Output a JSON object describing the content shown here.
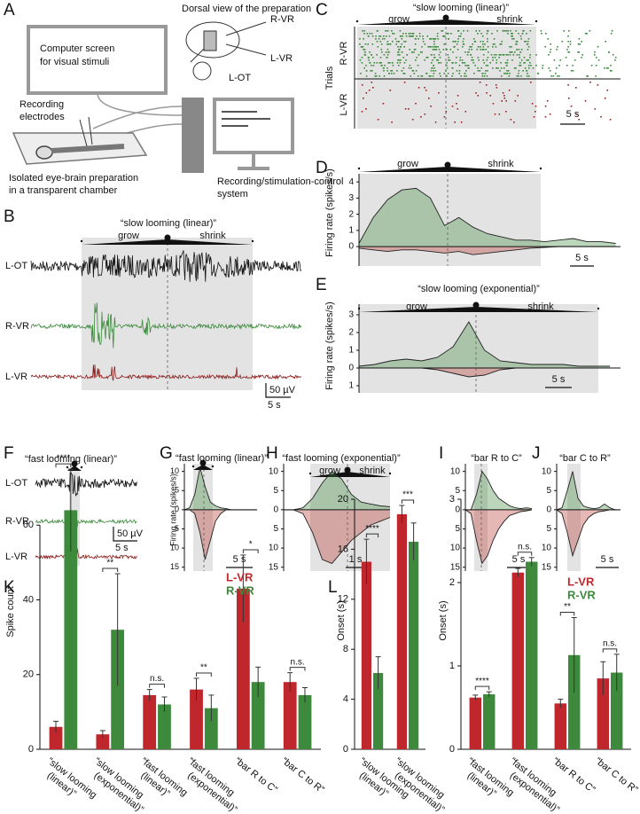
{
  "panel_labels": [
    "A",
    "B",
    "C",
    "D",
    "E",
    "F",
    "G",
    "H",
    "I",
    "J",
    "K",
    "L"
  ],
  "panel_a": {
    "screen": [
      "Computer screen",
      "for visual stimuli"
    ],
    "electrodes": [
      "Recording",
      "electrodes"
    ],
    "chamber": [
      "Isolated eye-brain preparation",
      "in a transparent chamber"
    ],
    "system": [
      "Recording/stimulation-control",
      "system"
    ],
    "dorsal": "Dorsal view of the preparation",
    "labels": [
      "R-VR",
      "L-OT",
      "L-VR"
    ]
  },
  "panel_b": {
    "title": "“slow looming (linear)”",
    "grow": "grow",
    "shrink": "shrink",
    "traces": [
      "L-OT",
      "R-VR",
      "L-VR"
    ],
    "scale_v": "50 µV",
    "scale_t": "5 s"
  },
  "panel_c": {
    "title": "“slow looming (linear)”",
    "grow": "grow",
    "shrink": "shrink",
    "trials": "Trials",
    "rows": [
      "R-VR",
      "L-VR"
    ],
    "scale_t": "5 s"
  },
  "panel_f": {
    "title": "“fast looming (linear)”",
    "traces": [
      "L-OT",
      "R-VR",
      "L-VR"
    ],
    "scale_v": "50 µV",
    "scale_t": "5 s"
  },
  "chart_data": [
    {
      "type": "line",
      "y_label": "Firing rate (spikes/s)",
      "annotations": [
        "grow",
        "shrink"
      ],
      "scalebar": "5 s",
      "x": [
        0,
        3,
        6,
        9,
        12,
        15,
        18,
        21,
        24,
        27,
        30,
        33,
        36,
        39,
        42,
        45,
        48,
        51,
        54
      ],
      "xlim": [
        0,
        55
      ],
      "ylim": [
        -1.2,
        4.5
      ],
      "yticks": [
        0,
        1,
        2,
        3,
        4
      ],
      "series": [
        {
          "color": "#3d8a3d",
          "values": [
            0.2,
            1.8,
            2.9,
            3.5,
            3.6,
            3.0,
            1.3,
            1.8,
            1.2,
            0.8,
            0.6,
            0.4,
            0.4,
            0.3,
            0.4,
            0.5,
            0.3,
            0.3,
            0.2
          ]
        },
        {
          "color": "#b5312c",
          "values": [
            -0.1,
            -0.2,
            -0.3,
            -0.2,
            -0.2,
            -0.3,
            -0.4,
            -0.3,
            -0.5,
            -0.4,
            -0.3,
            -0.2,
            -0.1,
            -0.05,
            0,
            0,
            0,
            0,
            0
          ]
        }
      ]
    },
    {
      "type": "line",
      "title": "“slow looming (exponential)”",
      "y_label": "Firing rate (spikes/s)",
      "annotations": [
        "grow",
        "shrink"
      ],
      "scalebar": "5 s",
      "x": [
        0,
        3,
        6,
        9,
        12,
        15,
        18,
        21,
        24,
        27,
        30,
        33,
        36,
        39,
        42,
        45,
        48
      ],
      "xlim": [
        0,
        50
      ],
      "ylim": [
        -1.4,
        3.6
      ],
      "yticks": [
        {
          "value": -1,
          "label": "1"
        },
        0,
        1,
        2,
        3
      ],
      "series": [
        {
          "color": "#3d8a3d",
          "values": [
            0.1,
            0.2,
            0.4,
            0.5,
            0.4,
            0.6,
            1.2,
            2.6,
            1.0,
            0.4,
            0.3,
            0.2,
            0.2,
            0.2,
            0.1,
            0.1,
            0.1
          ]
        },
        {
          "color": "#b5312c",
          "values": [
            0,
            0,
            0,
            0,
            0,
            -0.1,
            -0.3,
            -0.5,
            -0.4,
            -0.1,
            0,
            0,
            0,
            0,
            0,
            0,
            0
          ]
        }
      ]
    },
    {
      "type": "line",
      "title": "“fast looming (linear)”",
      "y_label": "Firing rate (spikes/s)",
      "scalebar": "5 s",
      "x": [
        0,
        1,
        2,
        3,
        4,
        5,
        6,
        7,
        8,
        9,
        10,
        11,
        12,
        13,
        14
      ],
      "xlim": [
        0,
        14
      ],
      "ylim": [
        -16,
        12
      ],
      "yticks": [
        {
          "value": -15,
          "label": "15"
        },
        {
          "value": -10,
          "label": "10"
        },
        {
          "value": -5,
          "label": "5"
        },
        0,
        5,
        10
      ],
      "series": [
        {
          "color": "#3d8a3d",
          "values": [
            0,
            0.5,
            4,
            11,
            6,
            2,
            1,
            0.5,
            0.3,
            0,
            0,
            0,
            0,
            0,
            0
          ]
        },
        {
          "color": "#b5312c",
          "values": [
            0,
            0,
            -1,
            -6,
            -13,
            -8,
            -3,
            -1,
            0,
            0,
            0,
            0,
            0,
            0,
            0
          ]
        }
      ]
    },
    {
      "type": "line",
      "title": "“fast looming (exponential)”",
      "annotations": [
        "grow",
        "shrink"
      ],
      "scalebar": "1 s",
      "x": [
        0,
        0.5,
        1,
        1.5,
        2,
        2.5,
        3,
        3.5,
        4,
        4.5,
        5,
        5.5
      ],
      "xlim": [
        0,
        5.5
      ],
      "ylim": [
        -16,
        12
      ],
      "yticks": [
        {
          "value": -15,
          "label": "15"
        },
        {
          "value": -10,
          "label": "10"
        },
        {
          "value": -5,
          "label": "5"
        },
        0,
        5,
        10
      ],
      "series": [
        {
          "color": "#3d8a3d",
          "values": [
            0,
            0,
            0.5,
            3,
            7,
            10,
            8,
            4,
            2,
            1.5,
            1,
            0.8
          ]
        },
        {
          "color": "#b5312c",
          "values": [
            0,
            0,
            -1,
            -6,
            -13,
            -14,
            -11,
            -8,
            -6,
            -4,
            -3,
            -2
          ]
        }
      ]
    },
    {
      "type": "line",
      "title": "“bar R to C”",
      "scalebar": "5 s",
      "x": [
        0,
        1,
        2,
        3,
        4,
        5,
        6,
        7,
        8,
        9,
        10,
        11,
        12
      ],
      "xlim": [
        0,
        12
      ],
      "ylim": [
        -16,
        12
      ],
      "yticks": [
        {
          "value": -15,
          "label": "15"
        },
        {
          "value": -10,
          "label": "10"
        },
        {
          "value": -5,
          "label": "5"
        },
        0,
        5,
        10
      ],
      "series": [
        {
          "color": "#3d8a3d",
          "values": [
            0,
            0,
            4,
            10,
            8,
            5,
            3,
            2,
            1,
            0.5,
            0.3,
            0.5,
            0.3
          ]
        },
        {
          "color": "#b5312c",
          "values": [
            0,
            -1,
            -8,
            -14,
            -12,
            -8,
            -5,
            -3,
            -1.5,
            -1,
            -0.5,
            -0.3,
            0
          ]
        }
      ]
    },
    {
      "type": "line",
      "title": "“bar C to R”",
      "scalebar": "5 s",
      "x": [
        0,
        1,
        2,
        3,
        4,
        5,
        6,
        7,
        8,
        9,
        10,
        11,
        12
      ],
      "xlim": [
        0,
        12
      ],
      "ylim": [
        -16,
        12
      ],
      "yticks": [
        {
          "value": -15,
          "label": "15"
        },
        {
          "value": -10,
          "label": "10"
        },
        {
          "value": -5,
          "label": "5"
        },
        0,
        5,
        10
      ],
      "series": [
        {
          "color": "#3d8a3d",
          "values": [
            0,
            0.5,
            5,
            10,
            3,
            1,
            0.5,
            0.3,
            0.5,
            1.5,
            0.5,
            0,
            0
          ]
        },
        {
          "color": "#b5312c",
          "values": [
            0,
            -1,
            -6,
            -12,
            -8,
            -4,
            -2,
            -1,
            -0.5,
            -0.3,
            0,
            0,
            0
          ]
        }
      ]
    },
    {
      "type": "bar",
      "y_label": "Spike count",
      "categories": [
        "“slow looming (linear)”",
        "“slow looming (exponential)”",
        "“fast looming (linear)”",
        "“fast looming (exponential)”",
        "“bar R to C”",
        "“bar C to R”"
      ],
      "ylim": [
        0,
        80
      ],
      "yticks": [
        0,
        20,
        40,
        60
      ],
      "series": [
        {
          "name": "L-VR",
          "color": "#c0272d",
          "values": [
            6,
            4,
            14.5,
            16,
            43,
            18
          ],
          "errors": [
            1.5,
            1,
            1.5,
            3,
            9,
            2.5
          ]
        },
        {
          "name": "R-VR",
          "color": "#3d8a3d",
          "values": [
            64,
            32,
            12,
            11,
            18,
            14.5
          ],
          "errors": [
            11,
            15,
            2,
            3.5,
            4,
            2
          ]
        }
      ],
      "significance": [
        "****",
        "**",
        "n.s.",
        "**",
        "*",
        "n.s."
      ]
    },
    {
      "type": "bar",
      "y_label": "Onset (s)",
      "categories": [
        "“slow looming (linear)”",
        "“slow looming (exponential)”"
      ],
      "ylim": [
        0,
        20
      ],
      "yticks": [
        0,
        4,
        8,
        12,
        16,
        20
      ],
      "series": [
        {
          "color": "#c0272d",
          "values": [
            15,
            18.8
          ],
          "errors": [
            1.8,
            0.7
          ]
        },
        {
          "color": "#3d8a3d",
          "values": [
            6.1,
            16.6
          ],
          "errors": [
            1.3,
            1.5
          ]
        }
      ],
      "significance": [
        "****",
        "***"
      ]
    },
    {
      "type": "bar",
      "y_label": "Onset (s)",
      "categories": [
        "“fast looming (linear)”",
        "“fast looming (exponential)”",
        "“bar R to C”",
        "“bar C to R”"
      ],
      "ylim": [
        0,
        3
      ],
      "yticks": [
        0,
        1,
        2,
        3
      ],
      "series": [
        {
          "name": "L-VR",
          "color": "#c0272d",
          "values": [
            0.62,
            2.12,
            0.55,
            0.85
          ],
          "errors": [
            0.03,
            0.05,
            0.05,
            0.2
          ]
        },
        {
          "name": "R-VR",
          "color": "#3d8a3d",
          "values": [
            0.66,
            2.25,
            1.13,
            0.92
          ],
          "errors": [
            0.03,
            0.05,
            0.45,
            0.22
          ]
        }
      ],
      "significance": [
        "****",
        "n.s.",
        "**",
        "n.s."
      ]
    }
  ]
}
